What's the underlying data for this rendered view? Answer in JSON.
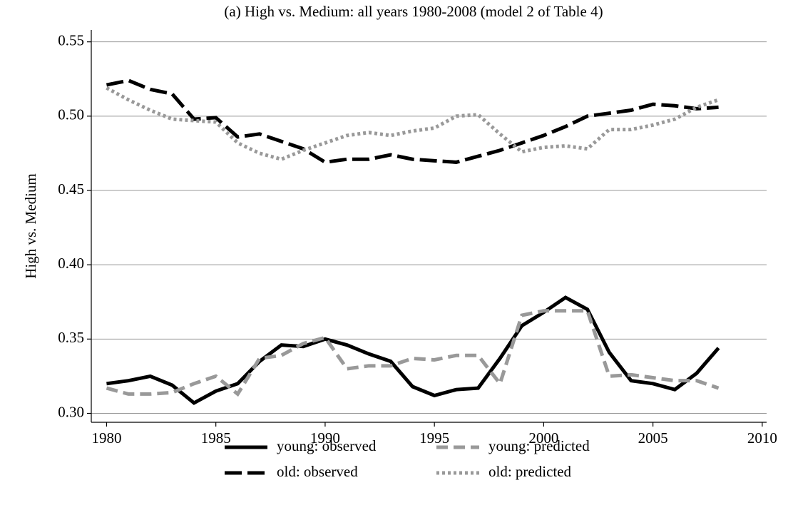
{
  "chart_data": {
    "type": "line",
    "title": "(a) High vs. Medium: all years 1980-2008 (model 2 of Table 4)",
    "y_label": "High vs. Medium",
    "x": [
      1980,
      1981,
      1982,
      1983,
      1984,
      1985,
      1986,
      1987,
      1988,
      1989,
      1990,
      1991,
      1992,
      1993,
      1994,
      1995,
      1996,
      1997,
      1998,
      1999,
      2000,
      2001,
      2002,
      2003,
      2004,
      2005,
      2006,
      2007,
      2008
    ],
    "series": [
      {
        "name": "young: observed",
        "color": "#000000",
        "linestyle": "solid",
        "values": [
          0.32,
          0.322,
          0.325,
          0.319,
          0.307,
          0.315,
          0.32,
          0.335,
          0.346,
          0.345,
          0.35,
          0.346,
          0.34,
          0.335,
          0.318,
          0.312,
          0.316,
          0.317,
          0.337,
          0.359,
          0.368,
          0.378,
          0.37,
          0.341,
          0.322,
          0.32,
          0.316,
          0.327,
          0.344
        ]
      },
      {
        "name": "young: predicted",
        "color": "#999999",
        "linestyle": "dashed",
        "values": [
          0.317,
          0.313,
          0.313,
          0.314,
          0.32,
          0.325,
          0.313,
          0.337,
          0.339,
          0.347,
          0.351,
          0.33,
          0.332,
          0.332,
          0.337,
          0.336,
          0.339,
          0.339,
          0.32,
          0.366,
          0.369,
          0.369,
          0.369,
          0.325,
          0.326,
          0.324,
          0.322,
          0.322,
          0.317
        ]
      },
      {
        "name": "old: observed",
        "color": "#000000",
        "linestyle": "longdash",
        "values": [
          0.521,
          0.524,
          0.518,
          0.515,
          0.498,
          0.499,
          0.486,
          0.488,
          0.483,
          0.478,
          0.469,
          0.471,
          0.471,
          0.474,
          0.471,
          0.47,
          0.469,
          0.473,
          0.477,
          0.482,
          0.487,
          0.493,
          0.5,
          0.502,
          0.504,
          0.508,
          0.507,
          0.505,
          0.506
        ]
      },
      {
        "name": "old: predicted",
        "color": "#999999",
        "linestyle": "dotted",
        "values": [
          0.519,
          0.511,
          0.504,
          0.498,
          0.497,
          0.496,
          0.482,
          0.475,
          0.471,
          0.477,
          0.482,
          0.487,
          0.489,
          0.487,
          0.49,
          0.492,
          0.5,
          0.501,
          0.488,
          0.476,
          0.479,
          0.48,
          0.478,
          0.491,
          0.491,
          0.494,
          0.498,
          0.506,
          0.511
        ]
      }
    ],
    "xlim": [
      1979.3,
      2010.2
    ],
    "xticks": [
      1980,
      1985,
      1990,
      1995,
      2000,
      2005,
      2010
    ],
    "ylim": [
      0.294,
      0.558
    ],
    "yticks": [
      {
        "value": 0.3,
        "label": "0.30"
      },
      {
        "value": 0.35,
        "label": "0.35"
      },
      {
        "value": 0.4,
        "label": "0.40"
      },
      {
        "value": 0.45,
        "label": "0.45"
      },
      {
        "value": 0.5,
        "label": "0.50"
      },
      {
        "value": 0.55,
        "label": "0.55"
      }
    ],
    "grid": true,
    "legend": "bottom"
  }
}
